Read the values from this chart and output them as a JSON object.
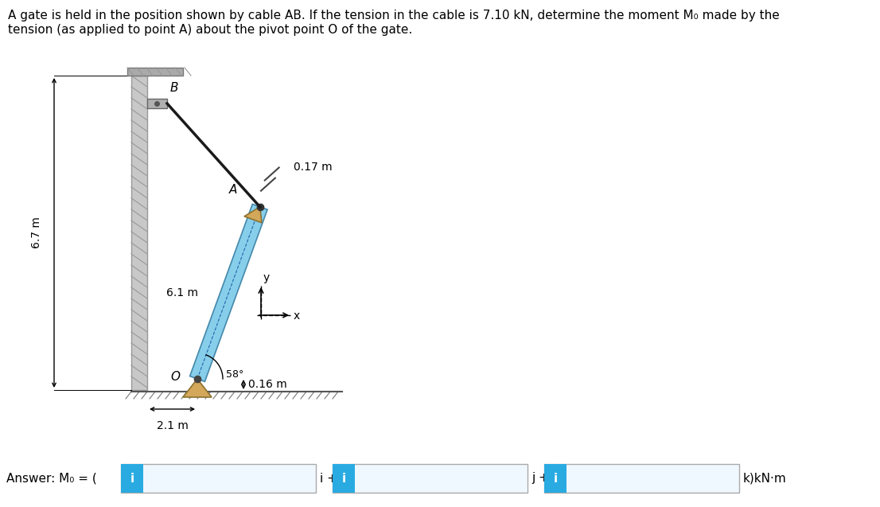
{
  "title_line1": "A gate is held in the position shown by cable AB. If the tension in the cable is 7.10 kN, determine the moment M₀ made by the",
  "title_line2": "tension (as applied to point A) about the pivot point O of the gate.",
  "title_fontsize": 11,
  "bg_color": "#ffffff",
  "answer_label": "Answer: M₀ = (",
  "answer_suffix": "k)kN·m",
  "answer_i_label": "i +",
  "answer_j_label": "j +",
  "box_color": "#29ABE2",
  "box_face": "#f0f8ff",
  "dim_67": "6.7 m",
  "dim_61": "6.1 m",
  "dim_017": "0.17 m",
  "dim_016": "0.16 m",
  "dim_21": "2.1 m",
  "angle_label": "58°",
  "label_A": "A",
  "label_B": "B",
  "label_O": "O",
  "label_x": "x",
  "label_y": "y",
  "gate_color": "#87CEEB",
  "bracket_color": "#D4A85A",
  "wall_color": "#BBBBBB",
  "cable_color": "#1a1a1a",
  "ground_hatch_color": "#777777"
}
